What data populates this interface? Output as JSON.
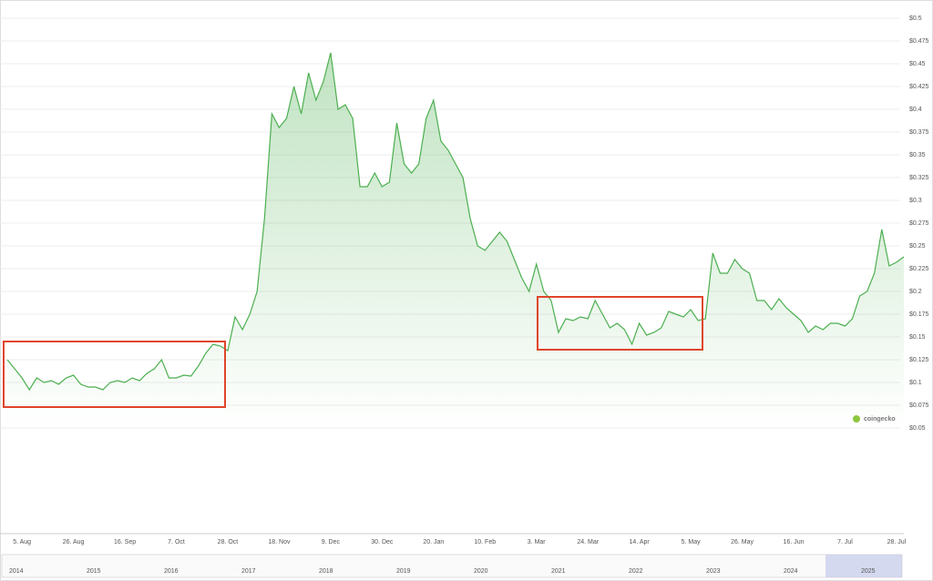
{
  "chart_data": {
    "type": "area",
    "watermark": "coingecko",
    "categories": [
      null,
      null,
      "5. Aug",
      null,
      null,
      null,
      null,
      null,
      null,
      "26. Aug",
      null,
      null,
      null,
      null,
      null,
      null,
      "16. Sep",
      null,
      null,
      null,
      null,
      null,
      null,
      "7. Oct",
      null,
      null,
      null,
      null,
      null,
      null,
      "28. Oct",
      null,
      null,
      null,
      null,
      null,
      null,
      "18. Nov",
      null,
      null,
      null,
      null,
      null,
      null,
      "9. Dec",
      null,
      null,
      null,
      null,
      null,
      null,
      "30. Dec",
      null,
      null,
      null,
      null,
      null,
      null,
      "20. Jan",
      null,
      null,
      null,
      null,
      null,
      null,
      "10. Feb",
      null,
      null,
      null,
      null,
      null,
      null,
      "3. Mar",
      null,
      null,
      null,
      null,
      null,
      null,
      "24. Mar",
      null,
      null,
      null,
      null,
      null,
      null,
      "14. Apr",
      null,
      null,
      null,
      null,
      null,
      null,
      "5. May",
      null,
      null,
      null,
      null,
      null,
      null,
      "26. May",
      null,
      null,
      null,
      null,
      null,
      null,
      "16. Jun",
      null,
      null,
      null,
      null,
      null,
      null,
      "7. Jul",
      null,
      null,
      null,
      null,
      null,
      null,
      "28. Jul",
      null
    ],
    "series": [
      {
        "color": "#4caf50",
        "values": [
          0.125,
          0.115,
          0.105,
          0.092,
          0.105,
          0.1,
          0.102,
          0.098,
          0.105,
          0.108,
          0.098,
          0.095,
          0.095,
          0.092,
          0.1,
          0.102,
          0.1,
          0.105,
          0.102,
          0.11,
          0.115,
          0.125,
          0.105,
          0.105,
          0.108,
          0.107,
          0.118,
          0.132,
          0.142,
          0.14,
          0.135,
          0.172,
          0.158,
          0.175,
          0.2,
          0.28,
          0.395,
          0.38,
          0.39,
          0.425,
          0.395,
          0.44,
          0.41,
          0.43,
          0.462,
          0.4,
          0.405,
          0.39,
          0.315,
          0.315,
          0.33,
          0.315,
          0.32,
          0.385,
          0.34,
          0.33,
          0.34,
          0.39,
          0.41,
          0.365,
          0.355,
          0.34,
          0.325,
          0.28,
          0.25,
          0.245,
          0.255,
          0.265,
          0.255,
          0.235,
          0.215,
          0.2,
          0.23,
          0.2,
          0.19,
          0.155,
          0.17,
          0.168,
          0.172,
          0.17,
          0.19,
          0.175,
          0.16,
          0.165,
          0.158,
          0.142,
          0.165,
          0.152,
          0.155,
          0.16,
          0.178,
          0.175,
          0.172,
          0.18,
          0.168,
          0.17,
          0.242,
          0.22,
          0.22,
          0.235,
          0.225,
          0.22,
          0.19,
          0.19,
          0.18,
          0.192,
          0.182,
          0.175,
          0.168,
          0.155,
          0.162,
          0.158,
          0.165,
          0.165,
          0.162,
          0.17,
          0.195,
          0.2,
          0.22,
          0.268,
          0.228,
          0.232,
          0.238
        ]
      }
    ],
    "ylim": [
      0.05,
      0.5
    ],
    "yticks": [
      {
        "value": 0.5,
        "label": "$0.5"
      },
      {
        "value": 0.475,
        "label": "$0.475"
      },
      {
        "value": 0.45,
        "label": "$0.45"
      },
      {
        "value": 0.425,
        "label": "$0.425"
      },
      {
        "value": 0.4,
        "label": "$0.4"
      },
      {
        "value": 0.375,
        "label": "$0.375"
      },
      {
        "value": 0.35,
        "label": "$0.35"
      },
      {
        "value": 0.325,
        "label": "$0.325"
      },
      {
        "value": 0.3,
        "label": "$0.3"
      },
      {
        "value": 0.275,
        "label": "$0.275"
      },
      {
        "value": 0.25,
        "label": "$0.25"
      },
      {
        "value": 0.225,
        "label": "$0.225"
      },
      {
        "value": 0.2,
        "label": "$0.2"
      },
      {
        "value": 0.175,
        "label": "$0.175"
      },
      {
        "value": 0.15,
        "label": "$0.15"
      },
      {
        "value": 0.125,
        "label": "$0.125"
      },
      {
        "value": 0.1,
        "label": "$0.1"
      },
      {
        "value": 0.075,
        "label": "$0.075"
      },
      {
        "value": 0.05,
        "label": "$0.05"
      }
    ],
    "grid": true,
    "navigator_years": [
      "2014",
      "2015",
      "2016",
      "2017",
      "2018",
      "2019",
      "2020",
      "2021",
      "2022",
      "2023",
      "2024",
      "2025"
    ]
  }
}
